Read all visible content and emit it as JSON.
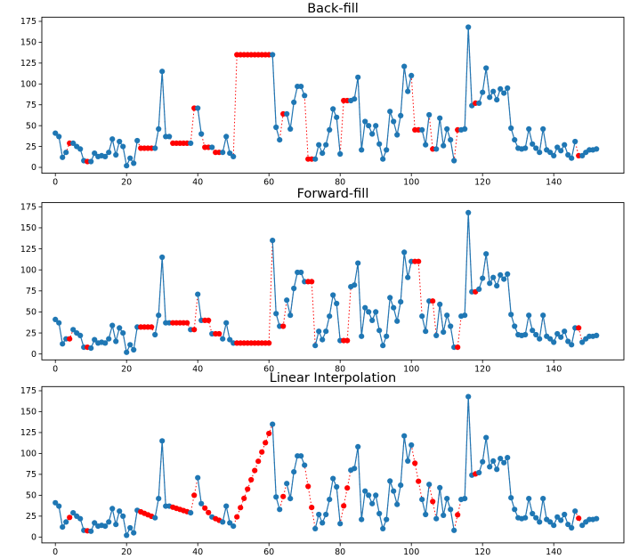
{
  "figure": {
    "background": "#ffffff",
    "kind": "matplotlib-style multi-panel line figure"
  },
  "chart_data": {
    "type": "line",
    "panels": [
      {
        "title": "Back-fill",
        "fill_method": "bfill"
      },
      {
        "title": "Forward-fill",
        "fill_method": "ffill"
      },
      {
        "title": "Linear Interpolation",
        "fill_method": "linear"
      }
    ],
    "x_ticks": [
      0,
      20,
      40,
      60,
      80,
      100,
      120,
      140
    ],
    "y_ticks": [
      0,
      25,
      50,
      75,
      100,
      125,
      150,
      175
    ],
    "xlim": [
      -3.8,
      159.7
    ],
    "ylim": [
      -7,
      180
    ],
    "observed_color": "#1f77b4",
    "filled_color": "#ff0000",
    "legend": "none",
    "grid": "off",
    "series_note": "values: observed time series, null = missing point; each panel plots the series with nulls filled by its fill_method; filled points and the segments through them are drawn red dotted, observed points/segments blue solid",
    "values": [
      41,
      37,
      12,
      18,
      null,
      29,
      25,
      22,
      8,
      null,
      7,
      17,
      13,
      14,
      13,
      18,
      34,
      15,
      31,
      25,
      2,
      11,
      5,
      32,
      null,
      null,
      null,
      null,
      23,
      46,
      115,
      37,
      37,
      null,
      null,
      null,
      null,
      null,
      29,
      null,
      71,
      40,
      null,
      null,
      24,
      null,
      null,
      18,
      37,
      17,
      13,
      null,
      null,
      null,
      null,
      null,
      null,
      null,
      null,
      null,
      null,
      135,
      48,
      33,
      null,
      64,
      46,
      78,
      97,
      97,
      86,
      null,
      null,
      10,
      27,
      17,
      27,
      45,
      70,
      60,
      16,
      null,
      null,
      80,
      82,
      108,
      21,
      55,
      50,
      40,
      50,
      28,
      10,
      21,
      67,
      55,
      39,
      62,
      121,
      91,
      110,
      null,
      null,
      45,
      27,
      63,
      null,
      22,
      59,
      26,
      46,
      33,
      8,
      null,
      45,
      46,
      168,
      74,
      null,
      77,
      90,
      119,
      84,
      91,
      81,
      94,
      89,
      95,
      47,
      33,
      23,
      22,
      23,
      46,
      28,
      23,
      18,
      46,
      21,
      18,
      14,
      24,
      20,
      27,
      15,
      11,
      31,
      null,
      14,
      18,
      21,
      21,
      22
    ]
  }
}
